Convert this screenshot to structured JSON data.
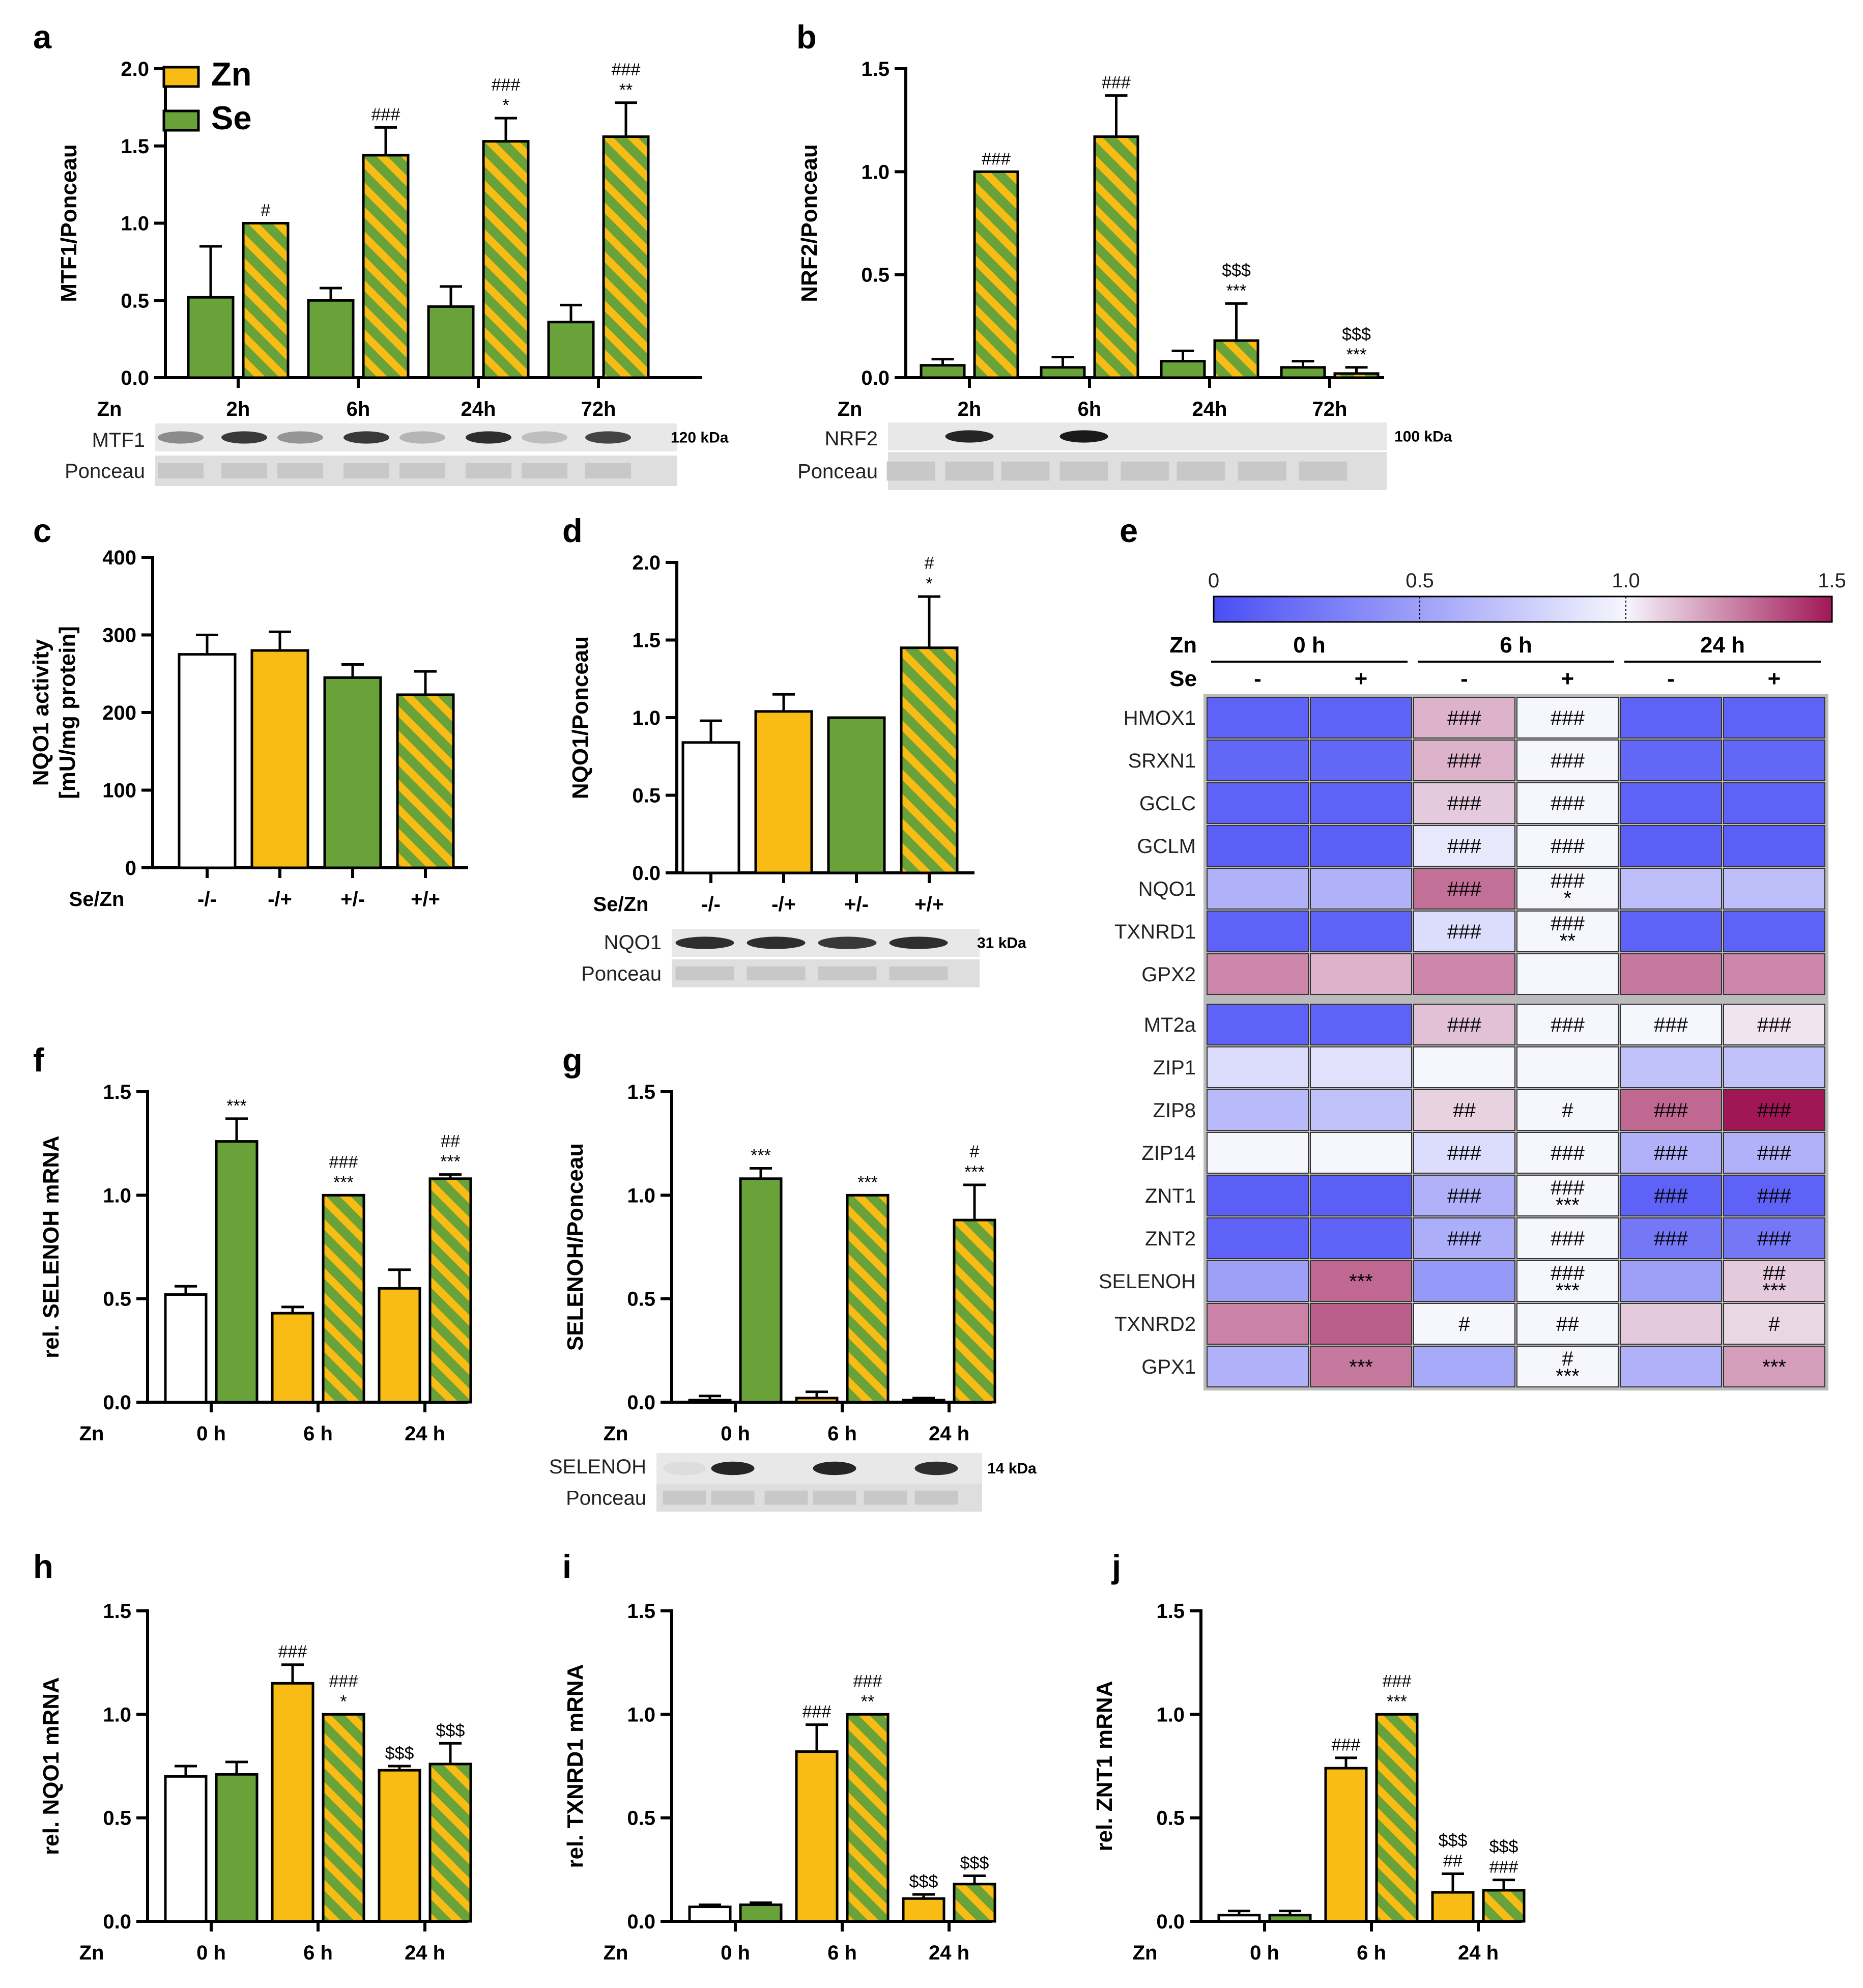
{
  "panel_letters": [
    "a",
    "b",
    "c",
    "d",
    "e",
    "f",
    "g",
    "h",
    "i",
    "j"
  ],
  "colors": {
    "zn": "#f9bc15",
    "se": "#6aa23a",
    "ctrl": "#ffffff",
    "heat_low": "#4a4ff5",
    "heat_mid": "#f6f6fd",
    "heat_high": "#a11756"
  },
  "legend": {
    "zn_label": "Zn",
    "se_label": "Se"
  },
  "blots": {
    "a": {
      "target": "MTF1",
      "loading": "Ponceau",
      "kda": "120 kDa"
    },
    "b": {
      "target": "NRF2",
      "loading": "Ponceau",
      "kda": "100 kDa"
    },
    "d": {
      "target": "NQO1",
      "loading": "Ponceau",
      "kda": "31 kDa"
    },
    "g": {
      "target": "SELENOH",
      "loading": "Ponceau",
      "kda": "14 kDa"
    }
  },
  "chart_data": [
    {
      "panel": "a",
      "type": "bar",
      "ylabel": "MTF1/Ponceau",
      "xprefix": "Zn",
      "ylim": [
        0,
        2.0
      ],
      "yticks": [
        "0.0",
        "0.5",
        "1.0",
        "1.5",
        "2.0"
      ],
      "groups": [
        "2h",
        "6h",
        "24h",
        "72h"
      ],
      "series": [
        {
          "name": "Se",
          "fill": "se",
          "values": [
            0.52,
            0.5,
            0.46,
            0.36
          ],
          "err": [
            0.33,
            0.08,
            0.13,
            0.11
          ],
          "sig": [
            [
              "",
              "",
              "",
              ""
            ]
          ]
        },
        {
          "name": "Se+Zn",
          "fill": "hatch",
          "values": [
            1.0,
            1.44,
            1.53,
            1.56
          ],
          "err": [
            0.0,
            0.18,
            0.15,
            0.22
          ],
          "sig": [
            [
              "#",
              "###",
              "###",
              "###"
            ],
            [
              "",
              "",
              "*",
              "**"
            ]
          ]
        }
      ]
    },
    {
      "panel": "b",
      "type": "bar",
      "ylabel": "NRF2/Ponceau",
      "xprefix": "Zn",
      "ylim": [
        0,
        1.5
      ],
      "yticks": [
        "0.0",
        "0.5",
        "1.0",
        "1.5"
      ],
      "groups": [
        "2h",
        "6h",
        "24h",
        "72h"
      ],
      "series": [
        {
          "fill": "se",
          "values": [
            0.06,
            0.05,
            0.08,
            0.05
          ],
          "err": [
            0.03,
            0.05,
            0.05,
            0.03
          ],
          "sig": [
            [
              "",
              "",
              "",
              ""
            ]
          ]
        },
        {
          "fill": "hatch",
          "values": [
            1.0,
            1.17,
            0.18,
            0.02
          ],
          "err": [
            0.0,
            0.2,
            0.18,
            0.03
          ],
          "sig": [
            [
              "###",
              "###",
              "$$$",
              "$$$"
            ],
            [
              "",
              "",
              "***",
              "***"
            ]
          ]
        }
      ]
    },
    {
      "panel": "c",
      "type": "bar",
      "ylabel": "NQO1 activity",
      "ylabel2": "[mU/mg protein]",
      "xprefix": "Se/Zn",
      "ylim": [
        0,
        400
      ],
      "yticks": [
        "0",
        "100",
        "200",
        "300",
        "400"
      ],
      "groups": [
        "-/-",
        "-/+",
        "+/-",
        "+/+"
      ],
      "series": [
        {
          "fills": [
            "ctrl",
            "zn",
            "se",
            "hatch"
          ],
          "values": [
            275,
            280,
            245,
            223
          ],
          "err": [
            25,
            24,
            17,
            30
          ],
          "sig": [
            [
              "",
              "",
              "",
              ""
            ]
          ]
        }
      ]
    },
    {
      "panel": "d",
      "type": "bar",
      "ylabel": "NQO1/Ponceau",
      "xprefix": "Se/Zn",
      "ylim": [
        0,
        2.0
      ],
      "yticks": [
        "0.0",
        "0.5",
        "1.0",
        "1.5",
        "2.0"
      ],
      "groups": [
        "-/-",
        "-/+",
        "+/-",
        "+/+"
      ],
      "series": [
        {
          "fills": [
            "ctrl",
            "zn",
            "se",
            "hatch"
          ],
          "values": [
            0.84,
            1.04,
            1.0,
            1.45
          ],
          "err": [
            0.14,
            0.11,
            0.0,
            0.33
          ],
          "sig": [
            [
              "",
              "",
              "",
              "#"
            ],
            [
              "",
              "",
              "",
              "*"
            ]
          ]
        }
      ]
    },
    {
      "panel": "f",
      "type": "bar",
      "ylabel": "rel. SELENOH mRNA",
      "xprefix": "Zn",
      "ylim": [
        0,
        1.5
      ],
      "yticks": [
        "0.0",
        "0.5",
        "1.0",
        "1.5"
      ],
      "groups": [
        "0 h",
        "6 h",
        "24 h"
      ],
      "series": [
        {
          "fills": [
            "ctrl",
            "zn",
            "zn"
          ],
          "values": [
            0.52,
            0.43,
            0.55
          ],
          "err": [
            0.04,
            0.03,
            0.09
          ],
          "sig": [
            [
              "",
              "",
              ""
            ]
          ]
        },
        {
          "fills": [
            "se",
            "hatch",
            "hatch"
          ],
          "values": [
            1.26,
            1.0,
            1.08
          ],
          "err": [
            0.11,
            0.0,
            0.02
          ],
          "sig": [
            [
              "",
              "###",
              "##"
            ],
            [
              "***",
              "***",
              "***"
            ]
          ]
        }
      ]
    },
    {
      "panel": "g",
      "type": "bar",
      "ylabel": "SELENOH/Ponceau",
      "xprefix": "Zn",
      "ylim": [
        0,
        1.5
      ],
      "yticks": [
        "0.0",
        "0.5",
        "1.0",
        "1.5"
      ],
      "groups": [
        "0 h",
        "6 h",
        "24 h"
      ],
      "series": [
        {
          "fills": [
            "ctrl",
            "zn",
            "zn"
          ],
          "values": [
            0.01,
            0.02,
            0.01
          ],
          "err": [
            0.02,
            0.03,
            0.01
          ],
          "sig": [
            [
              "",
              "",
              ""
            ]
          ]
        },
        {
          "fills": [
            "se",
            "hatch",
            "hatch"
          ],
          "values": [
            1.08,
            1.0,
            0.88
          ],
          "err": [
            0.05,
            0.0,
            0.17
          ],
          "sig": [
            [
              "",
              "",
              "#"
            ],
            [
              "***",
              "***",
              "***"
            ]
          ]
        }
      ]
    },
    {
      "panel": "h",
      "type": "bar",
      "ylabel": "rel. NQO1 mRNA",
      "xprefix": "Zn",
      "ylim": [
        0,
        1.5
      ],
      "yticks": [
        "0.0",
        "0.5",
        "1.0",
        "1.5"
      ],
      "groups": [
        "0 h",
        "6 h",
        "24 h"
      ],
      "series": [
        {
          "fills": [
            "ctrl",
            "zn",
            "zn"
          ],
          "values": [
            0.7,
            1.15,
            0.73
          ],
          "err": [
            0.05,
            0.09,
            0.02
          ],
          "sig": [
            [
              "",
              "###",
              "$$$"
            ]
          ]
        },
        {
          "fills": [
            "se",
            "hatch",
            "hatch"
          ],
          "values": [
            0.71,
            1.0,
            0.76
          ],
          "err": [
            0.06,
            0.0,
            0.1
          ],
          "sig": [
            [
              "",
              "###",
              "$$$"
            ],
            [
              "",
              "*",
              ""
            ]
          ]
        }
      ]
    },
    {
      "panel": "i",
      "type": "bar",
      "ylabel": "rel. TXNRD1 mRNA",
      "xprefix": "Zn",
      "ylim": [
        0,
        1.5
      ],
      "yticks": [
        "0.0",
        "0.5",
        "1.0",
        "1.5"
      ],
      "groups": [
        "0 h",
        "6 h",
        "24 h"
      ],
      "series": [
        {
          "fills": [
            "ctrl",
            "zn",
            "zn"
          ],
          "values": [
            0.07,
            0.82,
            0.11
          ],
          "err": [
            0.01,
            0.13,
            0.02
          ],
          "sig": [
            [
              "",
              "###",
              "$$$"
            ]
          ]
        },
        {
          "fills": [
            "se",
            "hatch",
            "hatch"
          ],
          "values": [
            0.08,
            1.0,
            0.18
          ],
          "err": [
            0.01,
            0.0,
            0.04
          ],
          "sig": [
            [
              "",
              "###",
              "$$$"
            ],
            [
              "",
              "**",
              ""
            ]
          ]
        }
      ]
    },
    {
      "panel": "j",
      "type": "bar",
      "ylabel": "rel. ZNT1 mRNA",
      "xprefix": "Zn",
      "ylim": [
        0,
        1.5
      ],
      "yticks": [
        "0.0",
        "0.5",
        "1.0",
        "1.5"
      ],
      "groups": [
        "0 h",
        "6 h",
        "24 h"
      ],
      "series": [
        {
          "fills": [
            "ctrl",
            "zn",
            "zn"
          ],
          "values": [
            0.03,
            0.74,
            0.14
          ],
          "err": [
            0.02,
            0.05,
            0.09
          ],
          "sig": [
            [
              "",
              "###",
              "$$$"
            ],
            [
              "",
              "",
              "##"
            ]
          ]
        },
        {
          "fills": [
            "se",
            "hatch",
            "hatch"
          ],
          "values": [
            0.03,
            1.0,
            0.15
          ],
          "err": [
            0.02,
            0.0,
            0.05
          ],
          "sig": [
            [
              "",
              "###",
              "$$$"
            ],
            [
              "",
              "***",
              "###"
            ]
          ]
        }
      ]
    },
    {
      "panel": "e",
      "type": "heatmap",
      "colorbar_ticks": [
        "0",
        "0.5",
        "1.0",
        "1.5"
      ],
      "colorbar_range": [
        0,
        1.5
      ],
      "zn_label": "Zn",
      "se_label": "Se",
      "time_labels": [
        "0 h",
        "6 h",
        "24 h"
      ],
      "se_labels": [
        "-",
        "+",
        "-",
        "+",
        "-",
        "+"
      ],
      "rows": [
        "HMOX1",
        "SRXN1",
        "GCLC",
        "GCLM",
        "NQO1",
        "TXNRD1",
        "GPX2",
        "MT2a",
        "ZIP1",
        "ZIP8",
        "ZIP14",
        "ZNT1",
        "ZNT2",
        "SELENOH",
        "TXNRD2",
        "GPX1"
      ],
      "values": [
        [
          0.12,
          0.12,
          1.15,
          1.0,
          0.12,
          0.12
        ],
        [
          0.15,
          0.15,
          1.15,
          1.0,
          0.15,
          0.15
        ],
        [
          0.12,
          0.12,
          1.1,
          1.0,
          0.12,
          0.12
        ],
        [
          0.1,
          0.1,
          0.92,
          1.0,
          0.1,
          0.1
        ],
        [
          0.6,
          0.6,
          1.3,
          1.0,
          0.68,
          0.68
        ],
        [
          0.12,
          0.12,
          0.85,
          1.0,
          0.12,
          0.12
        ],
        [
          1.25,
          1.15,
          1.25,
          1.0,
          1.28,
          1.25
        ],
        [
          0.12,
          0.12,
          1.12,
          1.0,
          1.0,
          1.04
        ],
        [
          0.85,
          0.88,
          1.0,
          1.0,
          0.7,
          0.7
        ],
        [
          0.65,
          0.7,
          1.08,
          1.0,
          1.32,
          1.5
        ],
        [
          1.0,
          1.0,
          0.85,
          1.0,
          0.6,
          0.6
        ],
        [
          0.1,
          0.1,
          0.6,
          1.0,
          0.12,
          0.12
        ],
        [
          0.12,
          0.12,
          0.58,
          1.0,
          0.25,
          0.25
        ],
        [
          0.5,
          1.32,
          0.45,
          1.0,
          0.5,
          1.1
        ],
        [
          1.26,
          1.34,
          1.0,
          1.0,
          1.1,
          1.07
        ],
        [
          0.6,
          1.28,
          0.55,
          1.0,
          0.6,
          1.2
        ]
      ],
      "sig": [
        [
          "",
          "",
          "###",
          "###",
          "",
          ""
        ],
        [
          "",
          "",
          "###",
          "###",
          "",
          ""
        ],
        [
          "",
          "",
          "###",
          "###",
          "",
          ""
        ],
        [
          "",
          "",
          "###",
          "###",
          "",
          ""
        ],
        [
          "",
          "",
          "###",
          "###|*",
          "",
          ""
        ],
        [
          "",
          "",
          "###",
          "###|**",
          "",
          ""
        ],
        [
          "",
          "",
          "",
          "",
          "",
          ""
        ],
        [
          "",
          "",
          "###",
          "###",
          "###",
          "###"
        ],
        [
          "",
          "",
          "",
          "",
          "",
          ""
        ],
        [
          "",
          "",
          "##",
          "#",
          "###",
          "###"
        ],
        [
          "",
          "",
          "###",
          "###",
          "###",
          "###"
        ],
        [
          "",
          "",
          "###",
          "###|***",
          "###",
          "###"
        ],
        [
          "",
          "",
          "###",
          "###",
          "###",
          "###"
        ],
        [
          "",
          "***",
          "",
          "###|***",
          "",
          "##|***"
        ],
        [
          "",
          "",
          "#",
          "##",
          "",
          "#"
        ],
        [
          "",
          "***",
          "",
          "#|***",
          "",
          "***"
        ]
      ]
    }
  ]
}
